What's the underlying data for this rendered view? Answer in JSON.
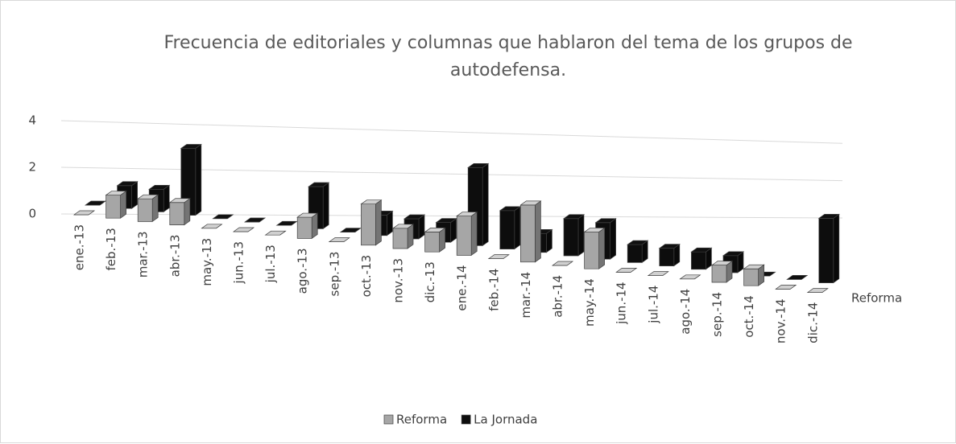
{
  "chart_data": {
    "type": "bar3d",
    "title": "Frecuencia de editoriales y columnas  que hablaron del tema de los grupos de autodefensa.",
    "categories": [
      "ene.-13",
      "feb.-13",
      "mar.-13",
      "abr.-13",
      "may.-13",
      "jun.-13",
      "jul.-13",
      "ago.-13",
      "sep.-13",
      "oct.-13",
      "nov.-13",
      "dic.-13",
      "ene.-14",
      "feb.-14",
      "mar.-14",
      "abr.-14",
      "may.-14",
      "jun.-14",
      "jul.-14",
      "ago.-14",
      "sep.-14",
      "oct.-14",
      "nov.-14",
      "dic.-14"
    ],
    "series": [
      {
        "name": "Reforma",
        "color": "#a6a6a6",
        "values": [
          0,
          1,
          1,
          1,
          0,
          0,
          0,
          1,
          0,
          2,
          1,
          1,
          2,
          0,
          3,
          0,
          2,
          0,
          0,
          0,
          1,
          1,
          0,
          0
        ]
      },
      {
        "name": "La Jornada",
        "color": "#0d0d0d",
        "values": [
          0,
          1,
          1,
          3,
          0,
          0,
          0,
          2,
          0,
          1,
          1,
          1,
          4,
          2,
          1,
          2,
          2,
          1,
          1,
          1,
          1,
          0,
          0,
          4
        ]
      }
    ],
    "depth_axis_label": "Reforma",
    "ylim": [
      0,
      4
    ],
    "yticks": [
      0,
      2,
      4
    ],
    "grid": true,
    "legend": "bottom"
  }
}
